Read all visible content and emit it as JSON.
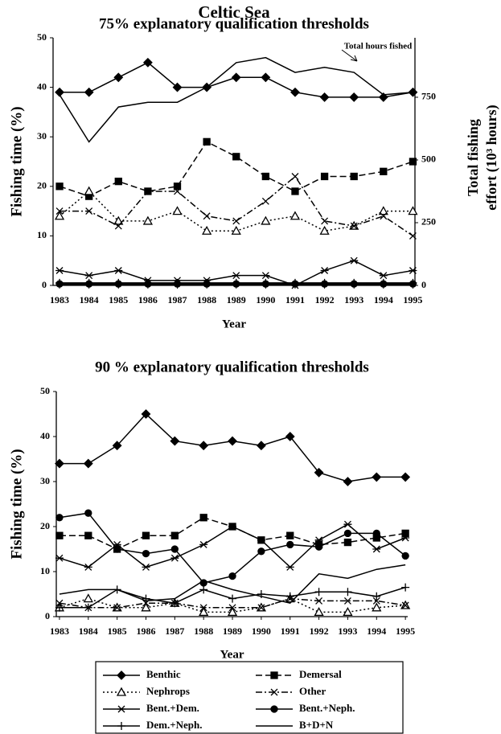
{
  "chart_data": [
    {
      "type": "line",
      "title": "Celtic Sea",
      "subtitle": "75% explanatory qualification thresholds",
      "ylabel": "Fishing time (%)",
      "y2label": [
        "Total fishing",
        "effort (10³ hours)"
      ],
      "xlabel": "Year",
      "x": [
        1983,
        1984,
        1985,
        1986,
        1987,
        1988,
        1989,
        1990,
        1991,
        1992,
        1993,
        1994,
        1995
      ],
      "xlim": [
        1982.78,
        1995.07
      ],
      "xticks": [
        1983,
        1984,
        1985,
        1986,
        1987,
        1988,
        1989,
        1990,
        1991,
        1992,
        1993,
        1994,
        1995
      ],
      "ylim": [
        0,
        50
      ],
      "yticks": [
        0,
        10,
        20,
        30,
        40,
        50
      ],
      "y2lim": [
        0,
        987
      ],
      "y2ticks": [
        0,
        250,
        500,
        750
      ],
      "series": [
        {
          "name": "Benthic",
          "color": "#000",
          "marker": "diamond",
          "dash": "solid",
          "values": [
            39,
            39,
            42,
            45,
            40,
            40,
            42,
            42,
            39,
            38,
            38,
            38,
            39
          ]
        },
        {
          "name": "Demersal",
          "color": "#000",
          "marker": "square",
          "dash": "dash",
          "values": [
            20,
            18,
            21,
            19,
            20,
            29,
            26,
            22,
            19,
            22,
            22,
            23,
            25
          ]
        },
        {
          "name": "Nephrops",
          "color": "#000",
          "marker": "triangle",
          "dash": "dot",
          "values": [
            14,
            19,
            13,
            13,
            15,
            11,
            11,
            13,
            14,
            11,
            12,
            15,
            15
          ]
        },
        {
          "name": "Other",
          "color": "#000",
          "marker": "x",
          "dash": "dashdot",
          "values": [
            15,
            15,
            12,
            19,
            19,
            14,
            13,
            17,
            22,
            13,
            12,
            14,
            10
          ]
        },
        {
          "name": "Bent.+Dem.",
          "color": "#000",
          "marker": "star",
          "dash": "solid",
          "values": [
            3,
            2,
            3,
            1,
            1,
            1,
            2,
            2,
            0,
            3,
            5,
            2,
            3
          ]
        },
        {
          "name": "Bent.+Neph.",
          "color": "#000",
          "marker": "circle",
          "dash": "solid",
          "values": [
            0.3,
            0.3,
            0.3,
            0.3,
            0.3,
            0.3,
            0.3,
            0.3,
            0.3,
            0.3,
            0.3,
            0.3,
            0.3
          ]
        },
        {
          "name": "Dem.+Neph.",
          "color": "#000",
          "marker": "plus",
          "dash": "solid",
          "values": [
            0.5,
            0.5,
            0.5,
            0.5,
            0.5,
            0.5,
            0.5,
            0.5,
            0.5,
            0.5,
            0.5,
            0.5,
            0.5
          ]
        },
        {
          "name": "B+D+N",
          "color": "#000",
          "marker": "none",
          "dash": "solid",
          "values": [
            0.2,
            0.2,
            0.2,
            0.2,
            0.2,
            0.2,
            0.2,
            0.2,
            0.2,
            0.2,
            0.2,
            0.2,
            0.2
          ]
        },
        {
          "name": "Total hours fished",
          "color": "#000",
          "marker": "none",
          "dash": "solid",
          "axis": "y2",
          "values": [
            760,
            572,
            711,
            730,
            730,
            790,
            888,
            908,
            849,
            869,
            849,
            760,
            770
          ]
        }
      ]
    },
    {
      "type": "line",
      "title": "90 % explanatory qualification thresholds",
      "ylabel": "Fishing time (%)",
      "xlabel": "Year",
      "x": [
        1983,
        1984,
        1985,
        1986,
        1987,
        1988,
        1989,
        1990,
        1991,
        1992,
        1993,
        1994,
        1995
      ],
      "xlim": [
        1982.89,
        1995.08
      ],
      "xticks": [
        1983,
        1984,
        1985,
        1986,
        1987,
        1988,
        1989,
        1990,
        1991,
        1992,
        1993,
        1994,
        1995
      ],
      "ylim": [
        0,
        50
      ],
      "yticks": [
        0,
        10,
        20,
        30,
        40,
        50
      ],
      "legend": "bottom",
      "series": [
        {
          "name": "Benthic",
          "color": "#000",
          "marker": "diamond",
          "dash": "solid",
          "values": [
            34,
            34,
            38,
            45,
            39,
            38,
            39,
            38,
            40,
            32,
            30,
            31,
            31
          ]
        },
        {
          "name": "Demersal",
          "color": "#000",
          "marker": "square",
          "dash": "dash",
          "values": [
            18,
            18,
            15,
            18,
            18,
            22,
            20,
            17,
            18,
            16,
            16.5,
            17.5,
            18.5
          ]
        },
        {
          "name": "Nephrops",
          "color": "#000",
          "marker": "triangle",
          "dash": "dot",
          "values": [
            2,
            4,
            2,
            2,
            3,
            1,
            1,
            2,
            4,
            1,
            1,
            2,
            2.5
          ]
        },
        {
          "name": "Other",
          "color": "#000",
          "marker": "x",
          "dash": "dashdot",
          "values": [
            3,
            2,
            2,
            3,
            3,
            2,
            2,
            2,
            4,
            3.5,
            3.5,
            3.5,
            2.5
          ]
        },
        {
          "name": "Bent.+Dem.",
          "color": "#000",
          "marker": "star",
          "dash": "solid",
          "values": [
            13,
            11,
            16,
            11,
            13,
            16,
            20,
            17,
            11,
            17,
            20.5,
            15,
            17.5
          ]
        },
        {
          "name": "Bent.+Neph.",
          "color": "#000",
          "marker": "circle",
          "dash": "solid",
          "values": [
            22,
            23,
            15,
            14,
            15,
            7.5,
            9,
            14.5,
            16,
            15.5,
            18.5,
            18.5,
            13.5
          ]
        },
        {
          "name": "Dem.+Neph.",
          "color": "#000",
          "marker": "plus",
          "dash": "solid",
          "values": [
            2,
            2,
            6,
            4,
            3,
            6,
            4,
            5,
            4.5,
            5.5,
            5.5,
            4.5,
            6.5
          ]
        },
        {
          "name": "B+D+N",
          "color": "#000",
          "marker": "none",
          "dash": "solid",
          "values": [
            5,
            6,
            6,
            3.5,
            4,
            8,
            6,
            4.5,
            3,
            9.5,
            8.5,
            10.5,
            11.5
          ]
        }
      ]
    }
  ]
}
